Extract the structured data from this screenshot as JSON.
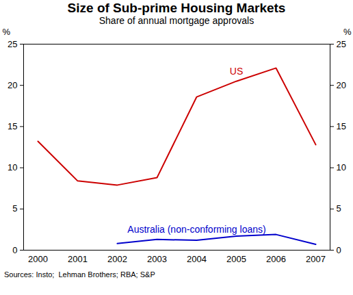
{
  "chart_data": {
    "type": "line",
    "title": "Size of Sub-prime Housing Markets",
    "subtitle": "Share of annual mortgage approvals",
    "caption": "Sources: Insto;  Lehman Brothers; RBA; S&P",
    "y_label": "%",
    "y2_label": "%",
    "categories": [
      "2000",
      "2001",
      "2002",
      "2003",
      "2004",
      "2005",
      "2006",
      "2007"
    ],
    "series": [
      {
        "name": "US",
        "color": "#cc0000",
        "values": [
          13.2,
          8.4,
          7.9,
          8.8,
          18.6,
          20.5,
          22.1,
          12.8
        ]
      },
      {
        "name": "Australia (non-conforming loans)",
        "color": "#0000cc",
        "values": [
          null,
          null,
          0.8,
          1.3,
          1.2,
          1.7,
          1.9,
          0.7
        ]
      }
    ],
    "ylim": [
      0,
      25
    ],
    "yticks": [
      0,
      5,
      10,
      15,
      20,
      25
    ],
    "y2lim": [
      0,
      25
    ],
    "y2ticks": [
      0,
      5,
      10,
      15,
      20,
      25
    ],
    "grid": false
  }
}
